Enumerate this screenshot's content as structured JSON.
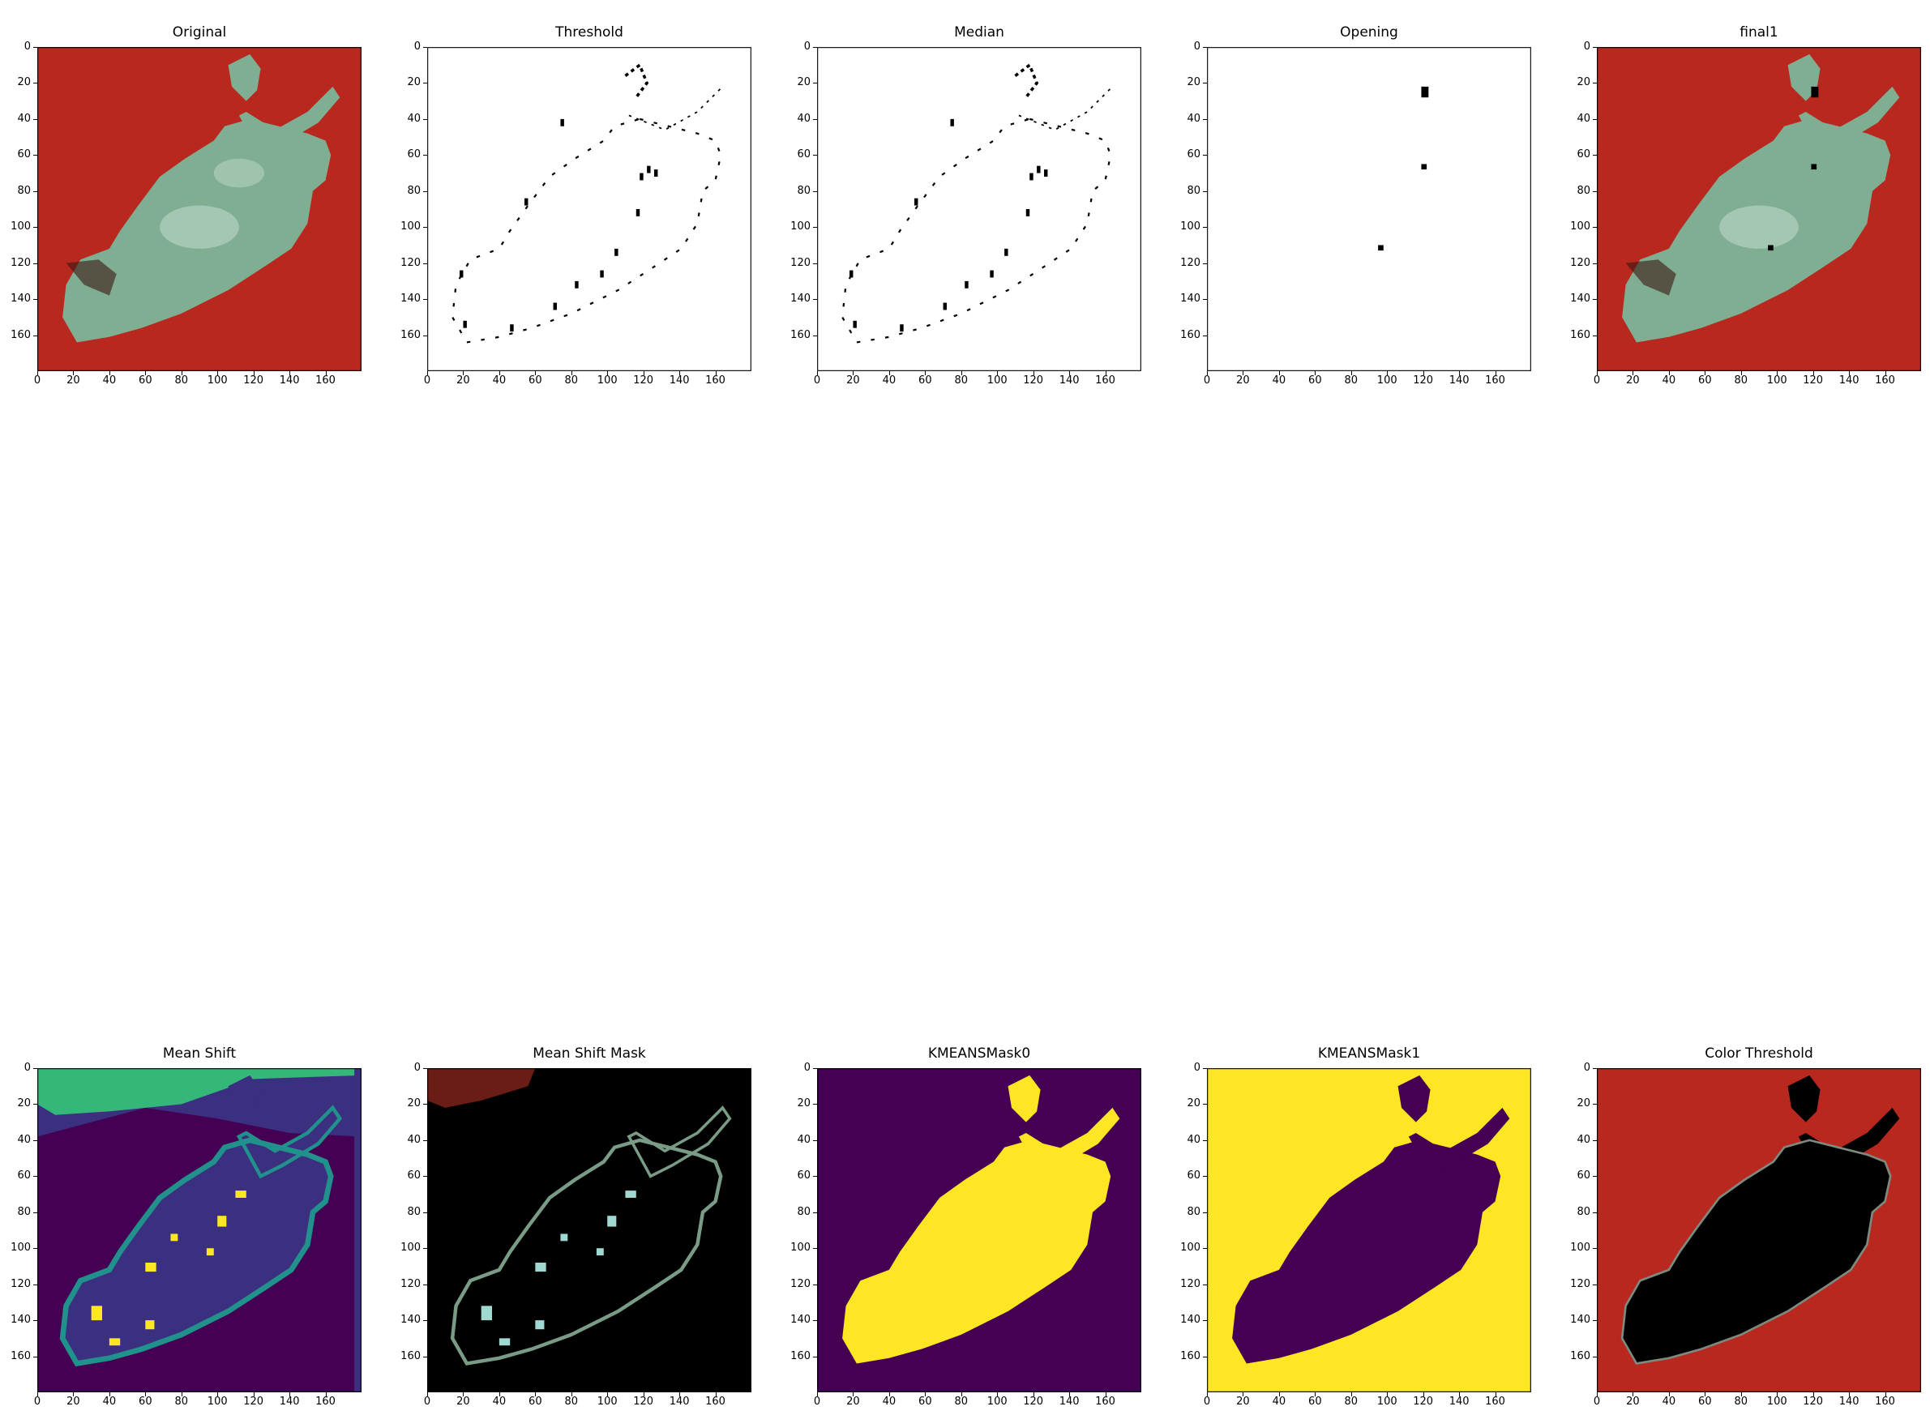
{
  "figure": {
    "panels": [
      {
        "title": "Original"
      },
      {
        "title": "Threshold"
      },
      {
        "title": "Median"
      },
      {
        "title": "Opening"
      },
      {
        "title": "final1"
      },
      {
        "title": "Mean Shift"
      },
      {
        "title": "Mean Shift Mask"
      },
      {
        "title": "KMEANSMask0"
      },
      {
        "title": "KMEANSMask1"
      },
      {
        "title": "Color Threshold"
      }
    ],
    "x_ticks": [
      "0",
      "20",
      "40",
      "60",
      "80",
      "100",
      "120",
      "140",
      "160"
    ],
    "y_ticks": [
      "0",
      "20",
      "40",
      "60",
      "80",
      "100",
      "120",
      "140",
      "160"
    ],
    "image_extent": {
      "x": [
        0,
        180
      ],
      "y": [
        0,
        180
      ]
    }
  },
  "colors": {
    "background_red": "#b8281e",
    "leaf_green": "#7fae92",
    "leaf_light": "#b4d2c2",
    "viridis_purple": "#440154",
    "viridis_indigo": "#3b2f80",
    "viridis_teal": "#21918c",
    "viridis_green": "#35b779",
    "viridis_yellow": "#fde725",
    "black": "#000000",
    "mask_cyan": "#9fd9d2",
    "dark_red": "#6a1d14"
  }
}
